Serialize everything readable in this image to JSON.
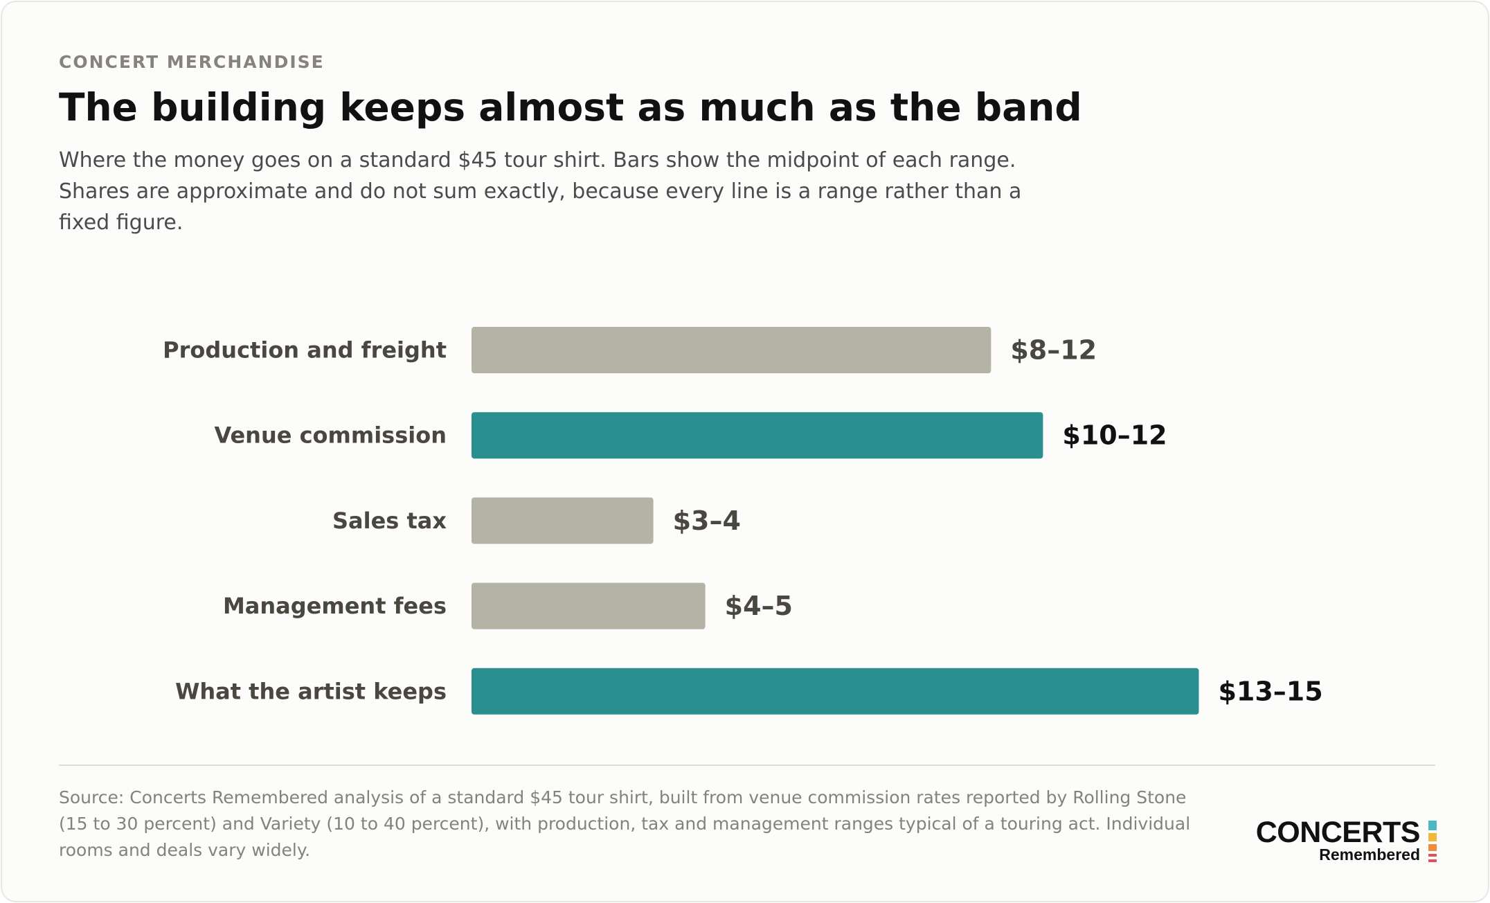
{
  "kicker": "CONCERT MERCHANDISE",
  "title": "The building keeps almost as much as the band",
  "subtitle": "Where the money goes on a standard $45 tour shirt. Bars show the midpoint of each range. Shares are approximate and do not sum exactly, because every line is a range rather than a fixed figure.",
  "source": "Source: Concerts Remembered analysis of a standard $45 tour shirt, built from venue commission rates reported by Rolling Stone (15 to 30 percent) and Variety (10 to 40 percent), with production, tax and management ranges typical of a touring act. Individual rooms and deals vary widely.",
  "logo": {
    "main": "CONCERTS",
    "sub": "Remembered",
    "colors": [
      "#4bb8c4",
      "#f2b83b",
      "#f08a3c",
      "#e2505c"
    ]
  },
  "colors": {
    "highlight": "#2a8f8e",
    "muted": "#b5b2a6",
    "label": "#4a4741",
    "value_highlight": "#111111",
    "value_muted": "#4a4741"
  },
  "chart_data": {
    "type": "bar",
    "orientation": "horizontal",
    "categories": [
      "Production and freight",
      "Venue commission",
      "Sales tax",
      "Management fees",
      "What the artist keeps"
    ],
    "ranges": [
      [
        8,
        12
      ],
      [
        10,
        12
      ],
      [
        3,
        4
      ],
      [
        4,
        5
      ],
      [
        13,
        15
      ]
    ],
    "values": [
      10,
      11,
      3.5,
      4.5,
      14
    ],
    "value_labels": [
      "$8–12",
      "$10–12",
      "$3–4",
      "$4–5",
      "$13–15"
    ],
    "highlighted": [
      false,
      true,
      false,
      false,
      true
    ],
    "xlim": [
      0,
      14.3
    ],
    "grid": false,
    "legend": false
  }
}
